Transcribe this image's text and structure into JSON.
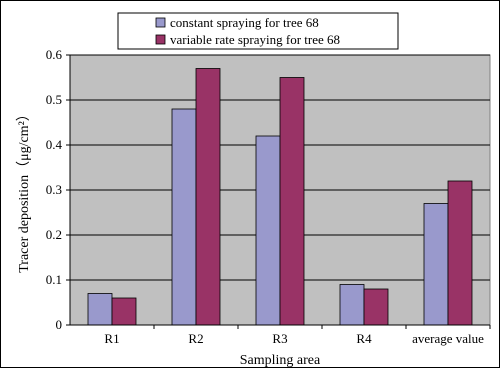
{
  "chart_data": {
    "type": "bar",
    "categories": [
      "R1",
      "R2",
      "R3",
      "R4",
      "average value"
    ],
    "series": [
      {
        "name": "constant spraying for tree 68",
        "values": [
          0.07,
          0.48,
          0.42,
          0.09,
          0.27
        ]
      },
      {
        "name": "variable rate spraying for tree 68",
        "values": [
          0.06,
          0.57,
          0.55,
          0.08,
          0.32
        ]
      }
    ],
    "xlabel": "Sampling area",
    "ylabel": "Tracer deposition（μg/cm²）",
    "ylim": [
      0,
      0.6
    ],
    "yticks": [
      "0",
      "0.1",
      "0.2",
      "0.3",
      "0.4",
      "0.5",
      "0.6"
    ],
    "grid": true,
    "legend_position": "top"
  },
  "colors": {
    "plot_background": "#c0c0c0",
    "series": [
      "#9999cc",
      "#993366"
    ],
    "gridline": "#000000"
  }
}
